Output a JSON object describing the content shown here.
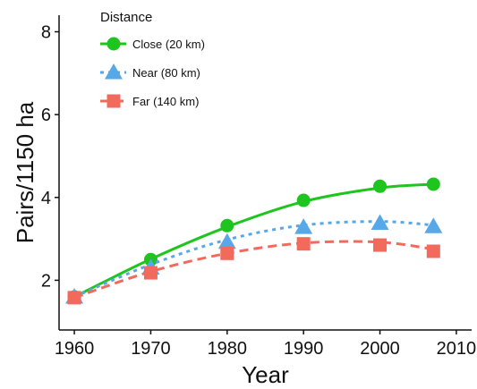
{
  "chart_data": {
    "type": "line",
    "title": "",
    "xlabel": "Year",
    "ylabel": "Pairs/1150 ha",
    "xlim": [
      1958,
      2012
    ],
    "ylim": [
      0.8,
      8.4
    ],
    "xticks": [
      1960,
      1970,
      1980,
      1990,
      2000,
      2010
    ],
    "yticks": [
      2,
      4,
      6,
      8
    ],
    "grid": false,
    "legend": {
      "title": "Distance",
      "position": "top-left"
    },
    "x": [
      1960,
      1970,
      1980,
      1990,
      2000,
      2007
    ],
    "series": [
      {
        "name": "Close (20 km)",
        "color": "#1ec51e",
        "marker": "circle",
        "dash": "solid",
        "values": [
          1.6,
          2.5,
          3.32,
          3.93,
          4.27,
          4.32
        ],
        "fit": [
          1.6,
          2.51,
          3.29,
          3.9,
          4.23,
          4.32
        ]
      },
      {
        "name": "Near (80 km)",
        "color": "#56a8e8",
        "marker": "triangle",
        "dash": "dotted",
        "values": [
          1.6,
          2.3,
          2.92,
          3.28,
          3.38,
          3.3
        ],
        "fit": [
          1.6,
          2.38,
          2.98,
          3.33,
          3.42,
          3.33
        ]
      },
      {
        "name": "Far (140 km)",
        "color": "#f26a5b",
        "marker": "square",
        "dash": "dashed",
        "values": [
          1.58,
          2.18,
          2.65,
          2.88,
          2.85,
          2.7
        ],
        "fit": [
          1.58,
          2.21,
          2.65,
          2.9,
          2.92,
          2.75
        ]
      }
    ]
  }
}
